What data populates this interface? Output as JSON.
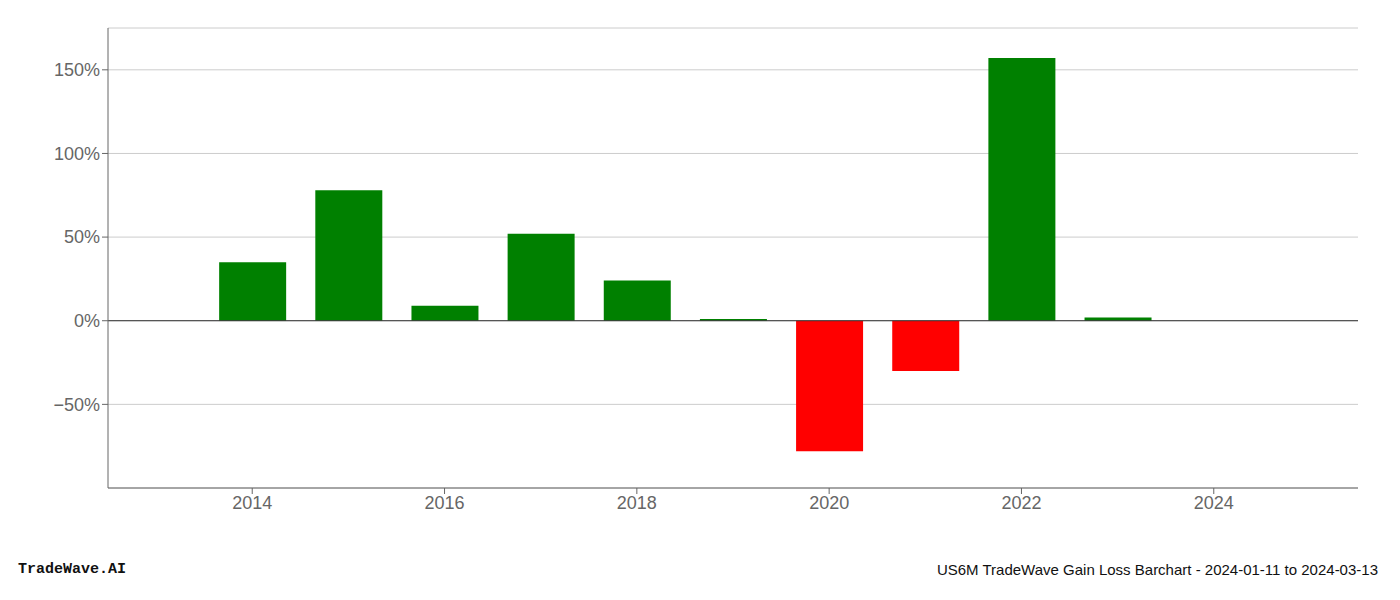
{
  "chart_data": {
    "type": "bar",
    "x": [
      2014,
      2015,
      2016,
      2017,
      2018,
      2019,
      2020,
      2021,
      2022,
      2023
    ],
    "values": [
      35.0,
      78.0,
      9.0,
      52.0,
      24.0,
      1.0,
      -78.0,
      -30.0,
      157.0,
      2.0
    ],
    "colors": [
      "#008000",
      "#008000",
      "#008000",
      "#008000",
      "#008000",
      "#008000",
      "#ff0000",
      "#ff0000",
      "#008000",
      "#008000"
    ],
    "xlim": [
      2012.5,
      2025.5
    ],
    "xticks": [
      2014,
      2016,
      2018,
      2020,
      2022,
      2024
    ],
    "ylim": [
      -100,
      175
    ],
    "yticks": [
      {
        "value": -50,
        "label": "−50%"
      },
      {
        "value": 0,
        "label": "0%"
      },
      {
        "value": 50,
        "label": "50%"
      },
      {
        "value": 100,
        "label": "100%"
      },
      {
        "value": 150,
        "label": "150%"
      }
    ],
    "grid": true,
    "annotations": [
      "TradeWave.AI",
      "US6M TradeWave Gain Loss Barchart - 2024-01-11 to 2024-03-13"
    ]
  }
}
